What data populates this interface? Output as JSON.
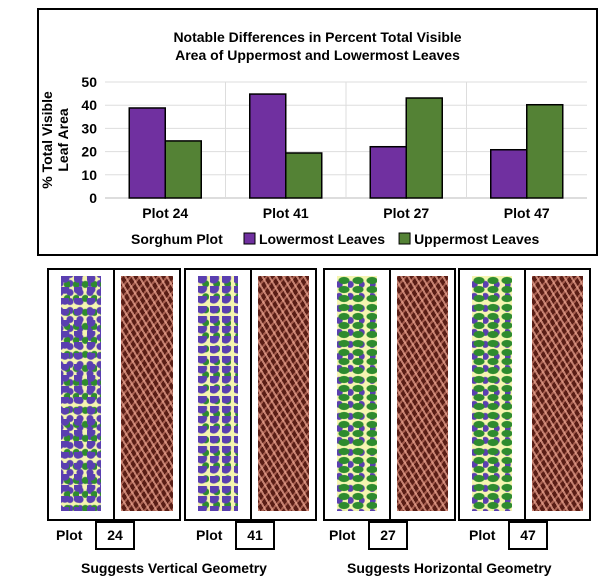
{
  "chart_data": {
    "type": "bar",
    "title": "Notable Differences in Percent Total Visible Area of Uppermost and Lowermost Leaves",
    "title_lines": [
      "Notable Differences in Percent Total Visible",
      "Area of Uppermost and Lowermost Leaves"
    ],
    "xlabel": "Sorghum Plot",
    "ylabel": "% Total Visible Leaf Area",
    "ylabel_lines": [
      "% Total Visible",
      "Leaf Area"
    ],
    "categories": [
      "Plot 24",
      "Plot 41",
      "Plot 27",
      "Plot 47"
    ],
    "series": [
      {
        "name": "Lowermost Leaves",
        "values": [
          38.8,
          44.8,
          22.1,
          20.8
        ],
        "color": "#7030a0"
      },
      {
        "name": "Uppermost Leaves",
        "values": [
          24.6,
          19.4,
          43.1,
          40.2
        ],
        "color": "#548235"
      }
    ],
    "ylim": [
      0,
      50
    ],
    "yticks": [
      0,
      10,
      20,
      30,
      40,
      50
    ],
    "grid": true,
    "legend": "bottom"
  },
  "panels": [
    {
      "plot_label": "Plot",
      "number": "24",
      "geometry": "vertical"
    },
    {
      "plot_label": "Plot",
      "number": "41",
      "geometry": "vertical"
    },
    {
      "plot_label": "Plot",
      "number": "27",
      "geometry": "horizontal"
    },
    {
      "plot_label": "Plot",
      "number": "47",
      "geometry": "horizontal"
    }
  ],
  "captions": {
    "vertical": "Suggests Vertical Geometry",
    "horizontal": "Suggests Horizontal Geometry"
  }
}
